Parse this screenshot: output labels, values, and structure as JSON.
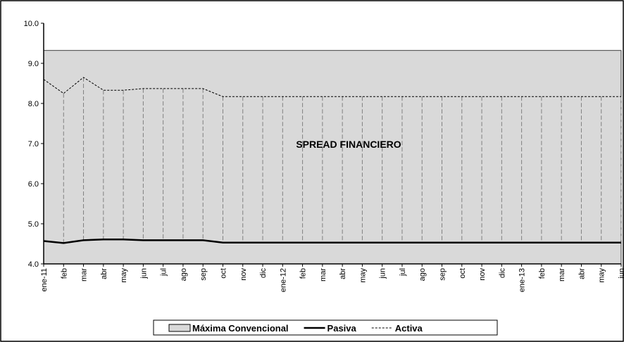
{
  "chart_data": {
    "type": "line",
    "annotation": "SPREAD FINANCIERO",
    "categories": [
      "ene-11",
      "feb",
      "mar",
      "abr",
      "may",
      "jun",
      "jul",
      "ago",
      "sep",
      "oct",
      "nov",
      "dic",
      "ene-12",
      "feb",
      "mar",
      "abr",
      "may",
      "jun",
      "jul",
      "ago",
      "sep",
      "oct",
      "nov",
      "dic",
      "ene-13",
      "feb",
      "mar",
      "abr",
      "may",
      "jun"
    ],
    "series": [
      {
        "name": "Máxima Convencional",
        "kind": "area",
        "color": "#d9d9d9",
        "values": [
          9.32,
          9.32,
          9.32,
          9.32,
          9.32,
          9.32,
          9.32,
          9.32,
          9.32,
          9.32,
          9.32,
          9.32,
          9.32,
          9.32,
          9.32,
          9.32,
          9.32,
          9.32,
          9.32,
          9.32,
          9.32,
          9.32,
          9.32,
          9.32,
          9.32,
          9.32,
          9.32,
          9.32,
          9.32,
          9.32
        ]
      },
      {
        "name": "Pasiva",
        "kind": "line",
        "color": "#000000",
        "dashed": false,
        "values": [
          4.57,
          4.52,
          4.59,
          4.61,
          4.61,
          4.59,
          4.59,
          4.59,
          4.59,
          4.53,
          4.53,
          4.53,
          4.53,
          4.53,
          4.53,
          4.53,
          4.53,
          4.53,
          4.53,
          4.53,
          4.53,
          4.53,
          4.53,
          4.53,
          4.53,
          4.53,
          4.53,
          4.53,
          4.53,
          4.53
        ]
      },
      {
        "name": "Activa",
        "kind": "line",
        "color": "#000000",
        "dashed": true,
        "values": [
          8.6,
          8.25,
          8.65,
          8.33,
          8.33,
          8.37,
          8.37,
          8.37,
          8.37,
          8.17,
          8.17,
          8.17,
          8.17,
          8.17,
          8.17,
          8.17,
          8.17,
          8.17,
          8.17,
          8.17,
          8.17,
          8.17,
          8.17,
          8.17,
          8.17,
          8.17,
          8.17,
          8.17,
          8.17,
          8.17
        ]
      }
    ],
    "drop_lines": true,
    "ylim": [
      4,
      10
    ],
    "yticks": [
      {
        "value": 4,
        "label": "4.0"
      },
      {
        "value": 5,
        "label": "5.0"
      },
      {
        "value": 6,
        "label": "6.0"
      },
      {
        "value": 7,
        "label": "7.0"
      },
      {
        "value": 8,
        "label": "8.0"
      },
      {
        "value": 9,
        "label": "9.0"
      },
      {
        "value": 10,
        "label": "10.0"
      }
    ],
    "legend": "bottom"
  }
}
